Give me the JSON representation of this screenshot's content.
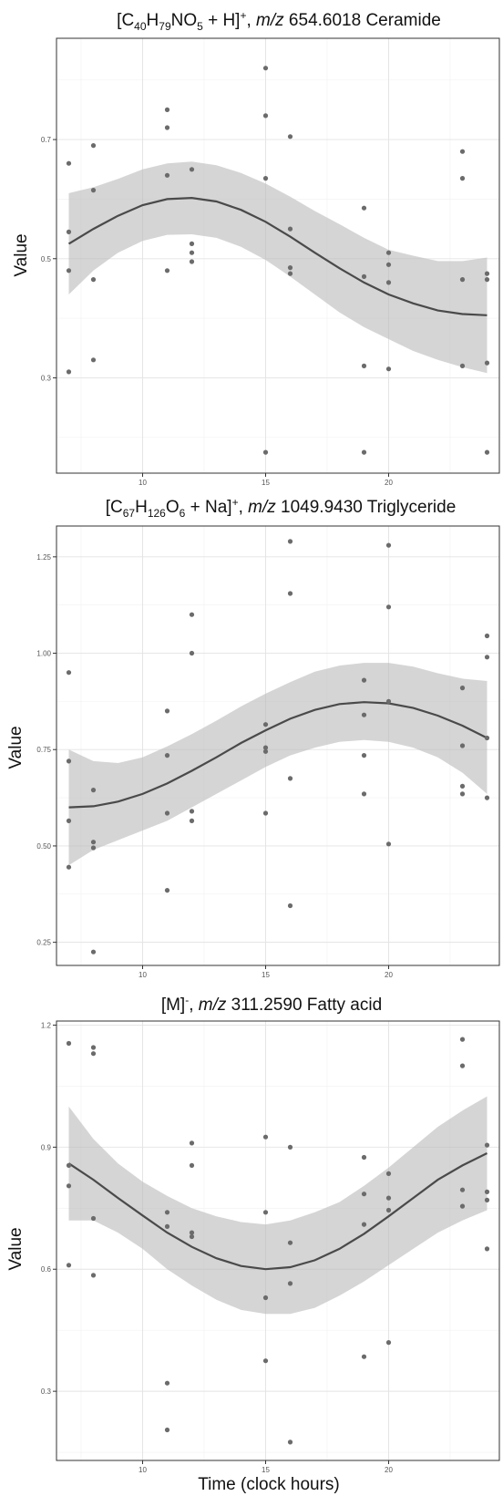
{
  "chart_data": [
    {
      "type": "scatter",
      "title": "[C40H79NO5 + H]+, m/z 654.6018 Ceramide",
      "title_parts": {
        "pre": "[C",
        "s1": "40",
        "m1": "H",
        "s2": "79",
        "m2": "NO",
        "s3": "5",
        "m3": " + H]",
        "sup": "+",
        "m4": ", ",
        "italic": "m/z",
        "post": " 654.6018 Ceramide"
      },
      "xlabel": "",
      "ylabel": "Value",
      "xlim": [
        6.5,
        24.5
      ],
      "ylim": [
        0.14,
        0.87
      ],
      "xticks": [
        "10",
        "15",
        "20"
      ],
      "xtick_values": [
        10,
        15,
        20
      ],
      "yticks": [
        "0.3",
        "0.5",
        "0.7"
      ],
      "ytick_values": [
        0.3,
        0.5,
        0.7
      ],
      "grid": true,
      "points": [
        [
          7,
          0.66
        ],
        [
          7,
          0.545
        ],
        [
          7,
          0.48
        ],
        [
          7,
          0.31
        ],
        [
          8,
          0.69
        ],
        [
          8,
          0.615
        ],
        [
          8,
          0.465
        ],
        [
          8,
          0.33
        ],
        [
          11,
          0.75
        ],
        [
          11,
          0.72
        ],
        [
          11,
          0.64
        ],
        [
          11,
          0.48
        ],
        [
          12,
          0.65
        ],
        [
          12,
          0.525
        ],
        [
          12,
          0.51
        ],
        [
          12,
          0.495
        ],
        [
          15,
          0.82
        ],
        [
          15,
          0.74
        ],
        [
          15,
          0.635
        ],
        [
          15,
          0.175
        ],
        [
          16,
          0.705
        ],
        [
          16,
          0.55
        ],
        [
          16,
          0.485
        ],
        [
          16,
          0.475
        ],
        [
          19,
          0.585
        ],
        [
          19,
          0.47
        ],
        [
          19,
          0.32
        ],
        [
          19,
          0.175
        ],
        [
          20,
          0.51
        ],
        [
          20,
          0.49
        ],
        [
          20,
          0.46
        ],
        [
          20,
          0.315
        ],
        [
          23,
          0.68
        ],
        [
          23,
          0.635
        ],
        [
          23,
          0.465
        ],
        [
          23,
          0.32
        ],
        [
          24,
          0.475
        ],
        [
          24,
          0.465
        ],
        [
          24,
          0.325
        ],
        [
          24,
          0.175
        ]
      ],
      "fit": {
        "x": [
          7,
          8,
          9,
          10,
          11,
          12,
          13,
          14,
          15,
          16,
          17,
          18,
          19,
          20,
          21,
          22,
          23,
          24
        ],
        "y": [
          0.525,
          0.55,
          0.572,
          0.59,
          0.6,
          0.602,
          0.596,
          0.582,
          0.562,
          0.537,
          0.51,
          0.484,
          0.46,
          0.44,
          0.425,
          0.413,
          0.407,
          0.405
        ],
        "lower": [
          0.44,
          0.48,
          0.51,
          0.53,
          0.54,
          0.541,
          0.535,
          0.52,
          0.498,
          0.47,
          0.44,
          0.41,
          0.385,
          0.365,
          0.345,
          0.33,
          0.318,
          0.308
        ],
        "upper": [
          0.61,
          0.62,
          0.634,
          0.65,
          0.66,
          0.663,
          0.657,
          0.644,
          0.626,
          0.604,
          0.58,
          0.558,
          0.535,
          0.515,
          0.505,
          0.496,
          0.496,
          0.502
        ]
      }
    },
    {
      "type": "scatter",
      "title": "[C67H126O6 + Na]+, m/z 1049.9430 Triglyceride",
      "title_parts": {
        "pre": "[C",
        "s1": "67",
        "m1": "H",
        "s2": "126",
        "m2": "O",
        "s3": "6",
        "m3": " + Na]",
        "sup": "+",
        "m4": ", ",
        "italic": "m/z",
        "post": " 1049.9430 Triglyceride"
      },
      "xlabel": "",
      "ylabel": "Value",
      "xlim": [
        6.5,
        24.5
      ],
      "ylim": [
        0.19,
        1.33
      ],
      "xticks": [
        "10",
        "15",
        "20"
      ],
      "xtick_values": [
        10,
        15,
        20
      ],
      "yticks": [
        "0.25",
        "0.50",
        "0.75",
        "1.00",
        "1.25"
      ],
      "ytick_values": [
        0.25,
        0.5,
        0.75,
        1.0,
        1.25
      ],
      "grid": true,
      "points": [
        [
          7,
          0.95
        ],
        [
          7,
          0.72
        ],
        [
          7,
          0.565
        ],
        [
          7,
          0.445
        ],
        [
          8,
          0.645
        ],
        [
          8,
          0.51
        ],
        [
          8,
          0.495
        ],
        [
          8,
          0.225
        ],
        [
          11,
          0.85
        ],
        [
          11,
          0.735
        ],
        [
          11,
          0.585
        ],
        [
          11,
          0.385
        ],
        [
          12,
          1.1
        ],
        [
          12,
          1.0
        ],
        [
          12,
          0.59
        ],
        [
          12,
          0.565
        ],
        [
          15,
          0.815
        ],
        [
          15,
          0.755
        ],
        [
          15,
          0.745
        ],
        [
          15,
          0.585
        ],
        [
          16,
          1.29
        ],
        [
          16,
          1.155
        ],
        [
          16,
          0.675
        ],
        [
          16,
          0.345
        ],
        [
          19,
          0.93
        ],
        [
          19,
          0.84
        ],
        [
          19,
          0.735
        ],
        [
          19,
          0.635
        ],
        [
          20,
          1.28
        ],
        [
          20,
          1.12
        ],
        [
          20,
          0.875
        ],
        [
          20,
          0.505
        ],
        [
          23,
          0.91
        ],
        [
          23,
          0.76
        ],
        [
          23,
          0.655
        ],
        [
          23,
          0.635
        ],
        [
          24,
          1.045
        ],
        [
          24,
          0.99
        ],
        [
          24,
          0.78
        ],
        [
          24,
          0.625
        ]
      ],
      "fit": {
        "x": [
          7,
          8,
          9,
          10,
          11,
          12,
          13,
          14,
          15,
          16,
          17,
          18,
          19,
          20,
          21,
          22,
          23,
          24
        ],
        "y": [
          0.6,
          0.603,
          0.615,
          0.635,
          0.662,
          0.695,
          0.73,
          0.767,
          0.8,
          0.83,
          0.853,
          0.868,
          0.873,
          0.87,
          0.858,
          0.838,
          0.812,
          0.78
        ],
        "lower": [
          0.45,
          0.49,
          0.515,
          0.54,
          0.565,
          0.6,
          0.635,
          0.67,
          0.705,
          0.735,
          0.755,
          0.77,
          0.775,
          0.77,
          0.755,
          0.73,
          0.69,
          0.635
        ],
        "upper": [
          0.75,
          0.72,
          0.715,
          0.73,
          0.758,
          0.79,
          0.825,
          0.862,
          0.895,
          0.925,
          0.952,
          0.968,
          0.975,
          0.975,
          0.965,
          0.948,
          0.934,
          0.928
        ]
      }
    },
    {
      "type": "scatter",
      "title": "[M]-, m/z 311.2590 Fatty acid",
      "title_parts": {
        "pre": "[M]",
        "s1": "",
        "m1": "",
        "s2": "",
        "m2": "",
        "s3": "",
        "m3": "",
        "sup": "-",
        "m4": ", ",
        "italic": "m/z",
        "post": " 311.2590 Fatty acid"
      },
      "xlabel": "Time (clock hours)",
      "ylabel": "Value",
      "xlim": [
        6.5,
        24.5
      ],
      "ylim": [
        0.13,
        1.21
      ],
      "xticks": [
        "10",
        "15",
        "20"
      ],
      "xtick_values": [
        10,
        15,
        20
      ],
      "yticks": [
        "0.3",
        "0.6",
        "0.9",
        "1.2"
      ],
      "ytick_values": [
        0.3,
        0.6,
        0.9,
        1.2
      ],
      "grid": true,
      "points": [
        [
          7,
          1.155
        ],
        [
          7,
          0.855
        ],
        [
          7,
          0.805
        ],
        [
          7,
          0.61
        ],
        [
          8,
          1.145
        ],
        [
          8,
          1.13
        ],
        [
          8,
          0.725
        ],
        [
          8,
          0.585
        ],
        [
          11,
          0.74
        ],
        [
          11,
          0.705
        ],
        [
          11,
          0.32
        ],
        [
          11,
          0.205
        ],
        [
          12,
          0.91
        ],
        [
          12,
          0.855
        ],
        [
          12,
          0.69
        ],
        [
          12,
          0.68
        ],
        [
          15,
          0.925
        ],
        [
          15,
          0.74
        ],
        [
          15,
          0.53
        ],
        [
          15,
          0.375
        ],
        [
          16,
          0.9
        ],
        [
          16,
          0.665
        ],
        [
          16,
          0.565
        ],
        [
          16,
          0.175
        ],
        [
          19,
          0.875
        ],
        [
          19,
          0.785
        ],
        [
          19,
          0.71
        ],
        [
          19,
          0.385
        ],
        [
          20,
          0.835
        ],
        [
          20,
          0.775
        ],
        [
          20,
          0.745
        ],
        [
          20,
          0.42
        ],
        [
          23,
          1.165
        ],
        [
          23,
          1.1
        ],
        [
          23,
          0.795
        ],
        [
          23,
          0.755
        ],
        [
          24,
          0.905
        ],
        [
          24,
          0.79
        ],
        [
          24,
          0.77
        ],
        [
          24,
          0.65
        ]
      ],
      "fit": {
        "x": [
          7,
          8,
          9,
          10,
          11,
          12,
          13,
          14,
          15,
          16,
          17,
          18,
          19,
          20,
          21,
          22,
          23,
          24
        ],
        "y": [
          0.86,
          0.82,
          0.775,
          0.732,
          0.69,
          0.655,
          0.627,
          0.608,
          0.6,
          0.605,
          0.622,
          0.65,
          0.687,
          0.73,
          0.775,
          0.82,
          0.855,
          0.885
        ],
        "lower": [
          0.72,
          0.72,
          0.69,
          0.65,
          0.6,
          0.56,
          0.525,
          0.5,
          0.49,
          0.49,
          0.505,
          0.535,
          0.57,
          0.61,
          0.65,
          0.69,
          0.72,
          0.745
        ],
        "upper": [
          1.0,
          0.92,
          0.86,
          0.815,
          0.78,
          0.75,
          0.73,
          0.716,
          0.71,
          0.72,
          0.74,
          0.765,
          0.805,
          0.85,
          0.9,
          0.95,
          0.99,
          1.025
        ]
      }
    }
  ]
}
